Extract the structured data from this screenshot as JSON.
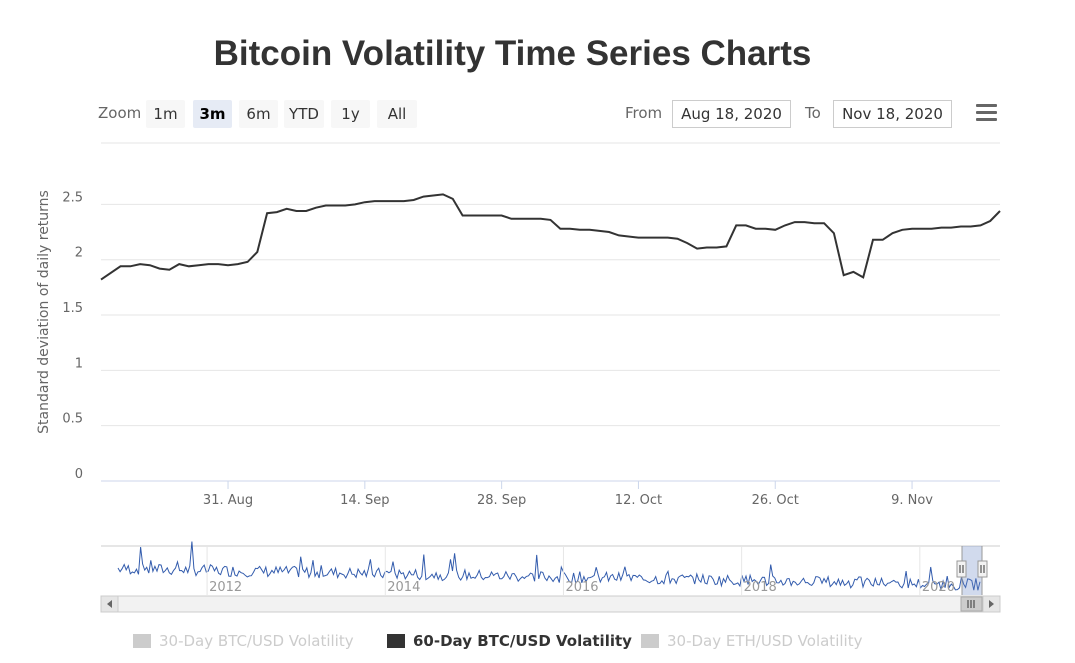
{
  "title": "Bitcoin Volatility Time Series Charts",
  "range_selector": {
    "zoom_label": "Zoom",
    "buttons": [
      "1m",
      "3m",
      "6m",
      "YTD",
      "1y",
      "All"
    ],
    "selected": "3m",
    "from_label": "From",
    "from_value": "Aug 18, 2020",
    "to_label": "To",
    "to_value": "Nov 18, 2020"
  },
  "menu_icon": "hamburger-menu-icon",
  "chart_data": {
    "type": "line",
    "ylabel": "Standard deviation of daily returns",
    "ylim": [
      0,
      2.5
    ],
    "yticks": [
      "0",
      "0.5",
      "1",
      "1.5",
      "2",
      "2.5"
    ],
    "xlim": [
      "2020-08-18",
      "2020-11-18"
    ],
    "xticks": [
      "31. Aug",
      "14. Sep",
      "28. Sep",
      "12. Oct",
      "26. Oct",
      "9. Nov"
    ],
    "series": [
      {
        "name": "60-Day BTC/USD Volatility",
        "color": "#333333",
        "x": [
          "2020-08-18",
          "2020-08-20",
          "2020-08-21",
          "2020-08-22",
          "2020-08-23",
          "2020-08-24",
          "2020-08-25",
          "2020-08-26",
          "2020-08-27",
          "2020-08-28",
          "2020-08-29",
          "2020-08-30",
          "2020-08-31",
          "2020-09-01",
          "2020-09-02",
          "2020-09-03",
          "2020-09-04",
          "2020-09-05",
          "2020-09-06",
          "2020-09-07",
          "2020-09-08",
          "2020-09-09",
          "2020-09-10",
          "2020-09-11",
          "2020-09-12",
          "2020-09-13",
          "2020-09-14",
          "2020-09-15",
          "2020-09-16",
          "2020-09-17",
          "2020-09-18",
          "2020-09-19",
          "2020-09-20",
          "2020-09-21",
          "2020-09-22",
          "2020-09-23",
          "2020-09-24",
          "2020-09-25",
          "2020-09-28",
          "2020-09-29",
          "2020-09-30",
          "2020-10-01",
          "2020-10-02",
          "2020-10-03",
          "2020-10-04",
          "2020-10-05",
          "2020-10-06",
          "2020-10-07",
          "2020-10-08",
          "2020-10-09",
          "2020-10-10",
          "2020-10-12",
          "2020-10-13",
          "2020-10-14",
          "2020-10-15",
          "2020-10-16",
          "2020-10-17",
          "2020-10-18",
          "2020-10-19",
          "2020-10-20",
          "2020-10-21",
          "2020-10-22",
          "2020-10-23",
          "2020-10-24",
          "2020-10-25",
          "2020-10-26",
          "2020-10-27",
          "2020-10-28",
          "2020-10-29",
          "2020-10-30",
          "2020-10-31",
          "2020-11-01",
          "2020-11-02",
          "2020-11-03",
          "2020-11-04",
          "2020-11-05",
          "2020-11-06",
          "2020-11-07",
          "2020-11-08",
          "2020-11-09",
          "2020-11-10",
          "2020-11-11",
          "2020-11-12",
          "2020-11-13",
          "2020-11-14",
          "2020-11-15",
          "2020-11-16",
          "2020-11-17",
          "2020-11-18"
        ],
        "values": [
          1.82,
          1.94,
          1.94,
          1.96,
          1.95,
          1.92,
          1.91,
          1.96,
          1.94,
          1.95,
          1.96,
          1.96,
          1.95,
          1.96,
          1.98,
          2.07,
          2.42,
          2.43,
          2.46,
          2.44,
          2.44,
          2.47,
          2.49,
          2.49,
          2.49,
          2.5,
          2.52,
          2.53,
          2.53,
          2.53,
          2.53,
          2.54,
          2.57,
          2.58,
          2.59,
          2.55,
          2.4,
          2.4,
          2.4,
          2.37,
          2.37,
          2.37,
          2.37,
          2.36,
          2.28,
          2.28,
          2.27,
          2.27,
          2.26,
          2.25,
          2.22,
          2.2,
          2.2,
          2.2,
          2.2,
          2.19,
          2.15,
          2.1,
          2.11,
          2.11,
          2.12,
          2.31,
          2.31,
          2.28,
          2.28,
          2.27,
          2.31,
          2.34,
          2.34,
          2.33,
          2.33,
          2.24,
          1.86,
          1.89,
          1.84,
          2.18,
          2.18,
          2.24,
          2.27,
          2.28,
          2.28,
          2.28,
          2.29,
          2.29,
          2.3,
          2.3,
          2.31,
          2.35,
          2.44
        ]
      }
    ],
    "navigator": {
      "xticks": [
        "2012",
        "2014",
        "2016",
        "2018",
        "2020"
      ]
    },
    "legend": {
      "placement": "bottom",
      "items": [
        {
          "label": "30-Day BTC/USD Volatility",
          "visible": false
        },
        {
          "label": "60-Day BTC/USD Volatility",
          "visible": true
        },
        {
          "label": "30-Day ETH/USD Volatility",
          "visible": false
        }
      ]
    }
  }
}
